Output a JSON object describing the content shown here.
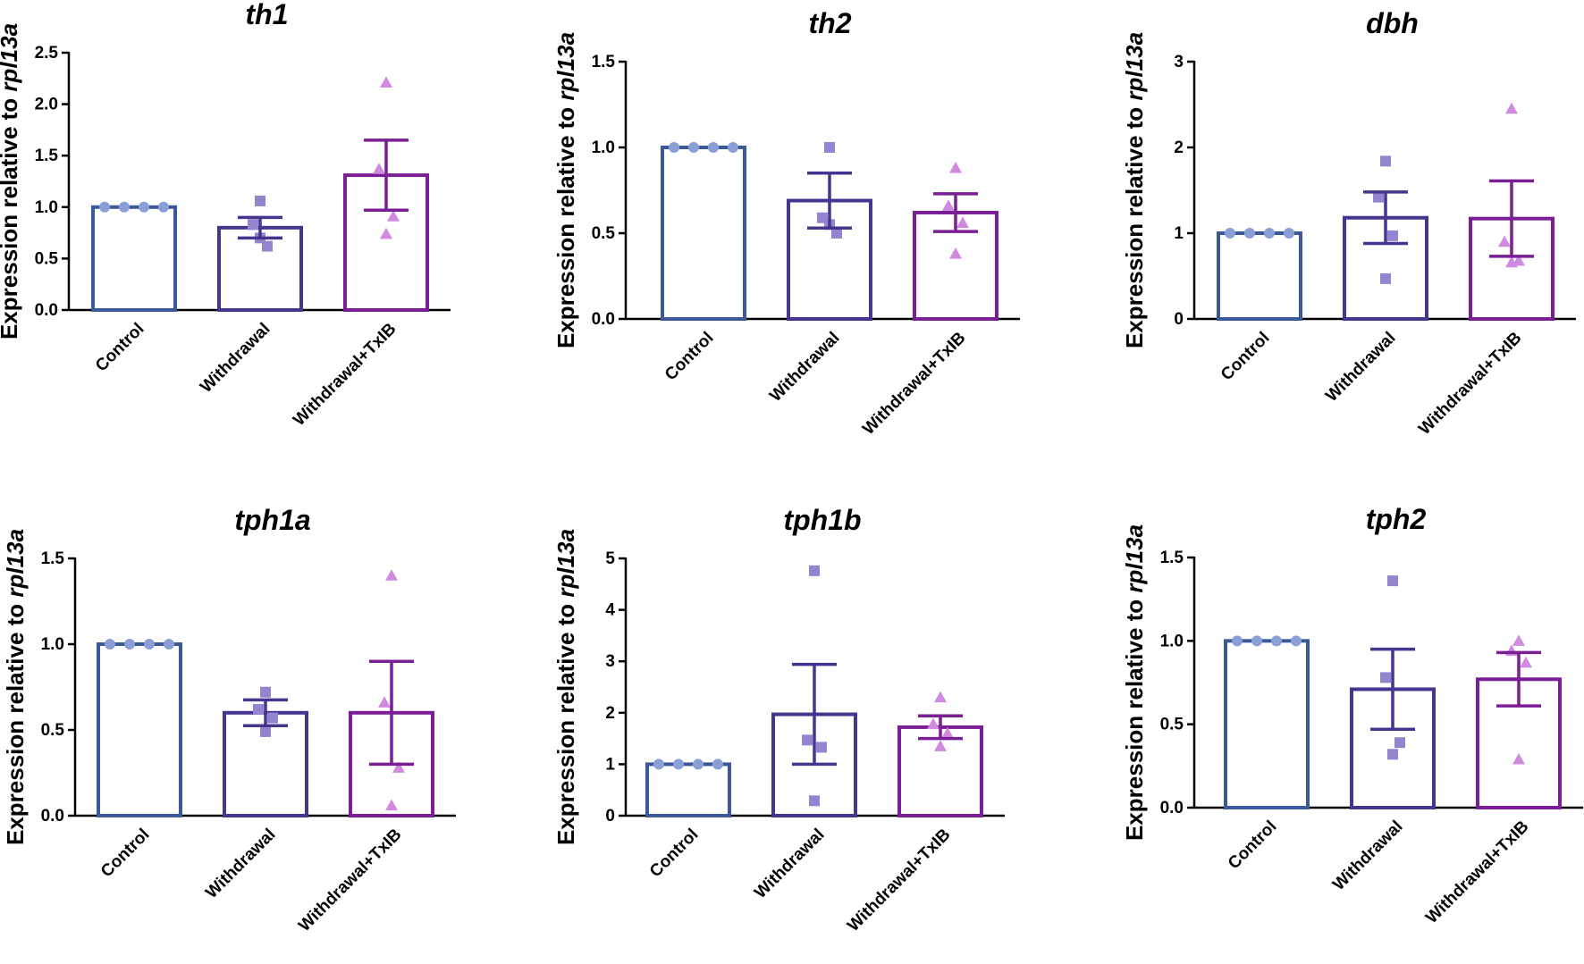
{
  "figure": {
    "caption": ""
  },
  "colors": {
    "control": "#3b5998",
    "withdrawal": "#46348f",
    "withdrawal_txib": "#7a1e95",
    "control_points": "#8a9fd6",
    "withdrawal_points": "#9483cf",
    "withdrawal_txib_points": "#d08be0",
    "axis": "#000000"
  },
  "chart_data": [
    {
      "type": "bar",
      "title": "th1",
      "ylabel_prefix": "Expression relative to ",
      "ylabel_italic": "rpl13a",
      "categories": [
        "Control",
        "Withdrawal",
        "Withdrawal+TxIB"
      ],
      "ylim": [
        0,
        2.5
      ],
      "yticks": [
        "0.0",
        "0.5",
        "1.0",
        "1.5",
        "2.0",
        "2.5"
      ],
      "ytick_values": [
        0,
        0.5,
        1.0,
        1.5,
        2.0,
        2.5
      ],
      "means": [
        1.0,
        0.8,
        1.31
      ],
      "sem": [
        0,
        0.1,
        0.34
      ],
      "points": [
        [
          1.0,
          1.0,
          1.0,
          1.0
        ],
        [
          1.06,
          0.83,
          0.62,
          0.7
        ],
        [
          2.21,
          1.37,
          0.91,
          0.74
        ]
      ],
      "markers": [
        "circle",
        "square",
        "triangle"
      ]
    },
    {
      "type": "bar",
      "title": "th2",
      "ylabel_prefix": "Expression relative to ",
      "ylabel_italic": "rpl13a",
      "categories": [
        "Control",
        "Withdrawal",
        "Withdrawal+TxIB"
      ],
      "ylim": [
        0,
        1.5
      ],
      "yticks": [
        "0.0",
        "0.5",
        "1.0",
        "1.5"
      ],
      "ytick_values": [
        0,
        0.5,
        1.0,
        1.5
      ],
      "means": [
        1.0,
        0.69,
        0.62
      ],
      "sem": [
        0,
        0.16,
        0.11
      ],
      "points": [
        [
          1.0,
          1.0,
          1.0,
          1.0
        ],
        [
          1.0,
          0.59,
          0.5,
          0.55
        ],
        [
          0.88,
          0.66,
          0.56,
          0.38
        ]
      ],
      "markers": [
        "circle",
        "square",
        "triangle"
      ]
    },
    {
      "type": "bar",
      "title": "dbh",
      "ylabel_prefix": "Expression relative to ",
      "ylabel_italic": "rpl13a",
      "categories": [
        "Control",
        "Withdrawal",
        "Withdrawal+TxIB"
      ],
      "ylim": [
        0,
        3
      ],
      "yticks": [
        "0",
        "1",
        "2",
        "3"
      ],
      "ytick_values": [
        0,
        1,
        2,
        3
      ],
      "means": [
        1.0,
        1.18,
        1.17
      ],
      "sem": [
        0,
        0.3,
        0.44
      ],
      "points": [
        [
          1.0,
          1.0,
          1.0,
          1.0
        ],
        [
          1.84,
          1.42,
          0.97,
          0.47
        ],
        [
          2.45,
          0.9,
          0.68,
          0.66
        ]
      ],
      "markers": [
        "circle",
        "square",
        "triangle"
      ]
    },
    {
      "type": "bar",
      "title": "tph1a",
      "ylabel_prefix": "Expression relative to ",
      "ylabel_italic": "rpl13a",
      "categories": [
        "Control",
        "Withdrawal",
        "Withdrawal+TxIB"
      ],
      "ylim": [
        0,
        1.5
      ],
      "yticks": [
        "0.0",
        "0.5",
        "1.0",
        "1.5"
      ],
      "ytick_values": [
        0,
        0.5,
        1.0,
        1.5
      ],
      "means": [
        1.0,
        0.6,
        0.6
      ],
      "sem": [
        0,
        0.075,
        0.3
      ],
      "points": [
        [
          1.0,
          1.0,
          1.0,
          1.0
        ],
        [
          0.72,
          0.62,
          0.57,
          0.49
        ],
        [
          1.4,
          0.66,
          0.28,
          0.06
        ]
      ],
      "markers": [
        "circle",
        "square",
        "triangle"
      ]
    },
    {
      "type": "bar",
      "title": "tph1b",
      "ylabel_prefix": "Expression relative to ",
      "ylabel_italic": "rpl13a",
      "categories": [
        "Control",
        "Withdrawal",
        "Withdrawal+TxIB"
      ],
      "ylim": [
        0,
        5
      ],
      "yticks": [
        "0",
        "1",
        "2",
        "3",
        "4",
        "5"
      ],
      "ytick_values": [
        0,
        1,
        2,
        3,
        4,
        5
      ],
      "means": [
        1.0,
        1.97,
        1.72
      ],
      "sem": [
        0,
        0.97,
        0.22
      ],
      "points": [
        [
          1.0,
          1.0,
          1.0,
          1.0
        ],
        [
          4.76,
          1.47,
          1.33,
          0.29
        ],
        [
          2.3,
          1.78,
          1.6,
          1.35
        ]
      ],
      "markers": [
        "circle",
        "square",
        "triangle"
      ]
    },
    {
      "type": "bar",
      "title": "tph2",
      "ylabel_prefix": "Expression relative to ",
      "ylabel_italic": "rpl13a",
      "categories": [
        "Control",
        "Withdrawal",
        "Withdrawal+TxIB"
      ],
      "ylim": [
        0,
        1.5
      ],
      "yticks": [
        "0.0",
        "0.5",
        "1.0",
        "1.5"
      ],
      "ytick_values": [
        0,
        0.5,
        1.0,
        1.5
      ],
      "means": [
        1.0,
        0.71,
        0.77
      ],
      "sem": [
        0,
        0.24,
        0.16
      ],
      "points": [
        [
          1.0,
          1.0,
          1.0,
          1.0
        ],
        [
          1.36,
          0.78,
          0.39,
          0.32
        ],
        [
          1.0,
          0.94,
          0.87,
          0.29
        ]
      ],
      "markers": [
        "circle",
        "square",
        "triangle"
      ]
    }
  ]
}
